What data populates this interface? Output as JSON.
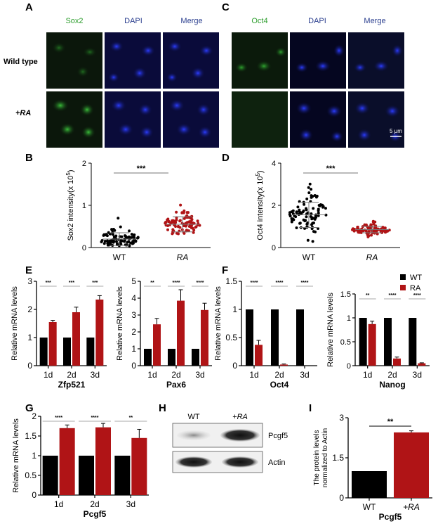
{
  "panel_labels": {
    "A": "A",
    "B": "B",
    "C": "C",
    "D": "D",
    "E": "E",
    "F": "F",
    "G": "G",
    "H": "H",
    "I": "I"
  },
  "panel_a": {
    "col_titles": [
      "Sox2",
      "DAPI",
      "Merge"
    ],
    "row_labels": [
      "Wild type",
      "+RA"
    ],
    "col_colors": [
      "#2e9e2e",
      "#2b3f8f",
      "#2b3f8f"
    ]
  },
  "panel_c": {
    "col_titles": [
      "Oct4",
      "DAPI",
      "Merge"
    ],
    "scale_bar": "5 μm",
    "col_colors": [
      "#2e9e2e",
      "#2b3f8f",
      "#2b3f8f"
    ]
  },
  "colors": {
    "wt": "#000000",
    "ra": "#b01416",
    "green": "#2e9e2e",
    "blue": "#2b3f8f"
  },
  "chart_data": [
    {
      "id": "B",
      "type": "scatter",
      "ylabel_text": "Sox2 intensity(x 10",
      "ylabel_exp": "5",
      "ylabel_close": ")",
      "categories": [
        "WT",
        "RA"
      ],
      "ylim": [
        0,
        2
      ],
      "yticks": [
        "0",
        "1",
        "2"
      ],
      "ytick_values": [
        0,
        1,
        2
      ],
      "means": [
        0.2,
        0.55
      ],
      "sd": [
        0.15,
        0.18
      ],
      "significance": "***"
    },
    {
      "id": "D",
      "type": "scatter",
      "ylabel_text": "Oct4 intensity(x 10",
      "ylabel_exp": "5",
      "ylabel_close": ")",
      "categories": [
        "WT",
        "RA"
      ],
      "ylim": [
        0,
        4
      ],
      "yticks": [
        "0",
        "2",
        "4"
      ],
      "ytick_values": [
        0,
        2,
        4
      ],
      "means": [
        1.55,
        0.85
      ],
      "sd": [
        0.6,
        0.15
      ],
      "significance": "***"
    },
    {
      "id": "E1",
      "type": "bar",
      "ylabel": "Relative mRNA levels",
      "xlabel": "Zfp521",
      "categories": [
        "1d",
        "2d",
        "3d"
      ],
      "ylim": [
        0,
        3
      ],
      "yticks": [
        "0",
        "1",
        "2",
        "3"
      ],
      "ytick_values": [
        0,
        1,
        2,
        3
      ],
      "series": [
        {
          "values": [
            1,
            1,
            1
          ]
        },
        {
          "values": [
            1.55,
            1.9,
            2.35
          ]
        }
      ],
      "errors": [
        0.06,
        0.18,
        0.14
      ],
      "sig": [
        "***",
        "***",
        "***"
      ]
    },
    {
      "id": "E2",
      "type": "bar",
      "ylabel": "Relative mRNA levels",
      "xlabel": "Pax6",
      "categories": [
        "1d",
        "2d",
        "3d"
      ],
      "ylim": [
        0,
        5
      ],
      "yticks": [
        "0",
        "1",
        "2",
        "3",
        "4",
        "5"
      ],
      "ytick_values": [
        0,
        1,
        2,
        3,
        4,
        5
      ],
      "series": [
        {
          "values": [
            1,
            1,
            1
          ]
        },
        {
          "values": [
            2.45,
            3.85,
            3.3
          ]
        }
      ],
      "errors": [
        0.35,
        0.65,
        0.4
      ],
      "sig": [
        "**",
        "****",
        "****"
      ]
    },
    {
      "id": "F1",
      "type": "bar",
      "ylabel": "Relative mRNA levels",
      "xlabel": "Oct4",
      "categories": [
        "1d",
        "2d",
        "3d"
      ],
      "ylim": [
        0,
        1.5
      ],
      "yticks": [
        "0",
        "0.5",
        "1",
        "1.5"
      ],
      "ytick_values": [
        0,
        0.5,
        1,
        1.5
      ],
      "series": [
        {
          "values": [
            1,
            1,
            1
          ]
        },
        {
          "values": [
            0.37,
            0.02,
            0.0
          ]
        }
      ],
      "errors": [
        0.08,
        0.01,
        0.0
      ],
      "sig": [
        "****",
        "****",
        "****"
      ]
    },
    {
      "id": "F2",
      "type": "bar",
      "ylabel": "Relative mRNA levels",
      "xlabel": "Nanog",
      "categories": [
        "1d",
        "2d",
        "3d"
      ],
      "ylim": [
        0,
        1.5
      ],
      "yticks": [
        "0",
        "0.5",
        "1",
        "1.5"
      ],
      "ytick_values": [
        0,
        0.5,
        1,
        1.5
      ],
      "series": [
        {
          "values": [
            1,
            1,
            1
          ]
        },
        {
          "values": [
            0.87,
            0.15,
            0.05
          ]
        }
      ],
      "errors": [
        0.06,
        0.03,
        0.01
      ],
      "sig": [
        "**",
        "****",
        "****"
      ],
      "legend": {
        "labels": [
          "WT",
          "RA"
        ],
        "placement": "top-right"
      }
    },
    {
      "id": "G",
      "type": "bar",
      "ylabel": "Relative mRNA levels",
      "xlabel": "Pcgf5",
      "categories": [
        "1d",
        "2d",
        "3d"
      ],
      "ylim": [
        0,
        2
      ],
      "yticks": [
        "0",
        "0.5",
        "1",
        "1.5",
        "2"
      ],
      "ytick_values": [
        0,
        0.5,
        1,
        1.5,
        2
      ],
      "series": [
        {
          "values": [
            1,
            1,
            1
          ]
        },
        {
          "values": [
            1.7,
            1.72,
            1.45
          ]
        }
      ],
      "errors": [
        0.08,
        0.1,
        0.22
      ],
      "sig": [
        "****",
        "****",
        "**"
      ]
    },
    {
      "id": "I",
      "type": "bar",
      "ylabel_lines": [
        "The protein levels",
        "normalized to Actin"
      ],
      "xlabel": "Pcgf5",
      "categories": [
        "WT",
        "+RA"
      ],
      "ylim": [
        0,
        3
      ],
      "yticks": [
        "0",
        "1.5",
        "3"
      ],
      "ytick_values": [
        0,
        1.5,
        3
      ],
      "values": [
        1,
        2.45
      ],
      "errors": [
        0,
        0.06
      ],
      "significance": "**"
    }
  ],
  "panel_h": {
    "col_labels": [
      "WT",
      "+RA"
    ],
    "band_labels": [
      "Pcgf5",
      "Actin"
    ]
  }
}
